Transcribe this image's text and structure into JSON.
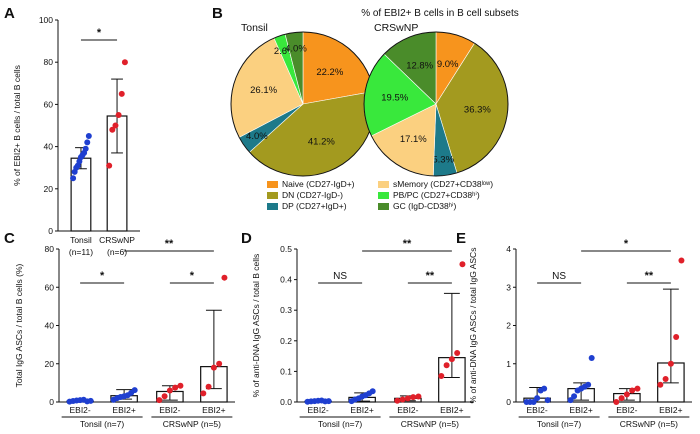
{
  "chart_data": [
    {
      "id": "A",
      "type": "scatter",
      "panel_label": "A",
      "ylabel": "% of EBI2+ B cells / total B cells",
      "ylim": [
        0,
        100
      ],
      "yticks": [
        "0",
        "20",
        "40",
        "60",
        "80",
        "100"
      ],
      "groups": [
        {
          "name": "Tonsil",
          "n": "(n=11)",
          "color": "#1f3fd0",
          "bar": 34.5,
          "err": [
            29.5,
            39.5
          ],
          "points": [
            25,
            28,
            30,
            31,
            33,
            35,
            36,
            37,
            39,
            42,
            45
          ]
        },
        {
          "name": "CRSwNP",
          "n": "(n=6)",
          "color": "#e0202a",
          "bar": 54.5,
          "err": [
            37,
            72
          ],
          "points": [
            31,
            48,
            50,
            55,
            65,
            80
          ]
        }
      ],
      "brackets": [
        {
          "from": 0,
          "to": 1,
          "label": "*"
        }
      ]
    },
    {
      "id": "B",
      "type": "pie",
      "panel_label": "B",
      "title": "% of EBI2+ B cells in B cell subsets",
      "pies": [
        {
          "name": "Tonsil",
          "slices": [
            {
              "label": "22.2%",
              "value": 22.2,
              "color": "#f7941d"
            },
            {
              "label": "41.2%",
              "value": 41.2,
              "color": "#a39a1f"
            },
            {
              "label": "4.0%",
              "value": 4.0,
              "color": "#1d7a8a"
            },
            {
              "label": "26.1%",
              "value": 26.1,
              "color": "#fbd080"
            },
            {
              "label": "2.6%",
              "value": 2.6,
              "color": "#39e83c"
            },
            {
              "label": "4.0%",
              "value": 4.0,
              "color": "#4a8c2a"
            }
          ]
        },
        {
          "name": "CRSwNP",
          "slices": [
            {
              "label": "9.0%",
              "value": 9.0,
              "color": "#f7941d"
            },
            {
              "label": "36.3%",
              "value": 36.3,
              "color": "#a39a1f"
            },
            {
              "label": "5.3%",
              "value": 5.3,
              "color": "#1d7a8a"
            },
            {
              "label": "17.1%",
              "value": 17.1,
              "color": "#fbd080"
            },
            {
              "label": "19.5%",
              "value": 19.5,
              "color": "#39e83c"
            },
            {
              "label": "12.8%",
              "value": 12.8,
              "color": "#4a8c2a"
            }
          ]
        }
      ],
      "legend": [
        {
          "label": "Naive (CD27-IgD+)",
          "color": "#f7941d"
        },
        {
          "label": "sMemory (CD27+CD38ˡᵒʷ)",
          "color": "#fbd080"
        },
        {
          "label": "DN (CD27-IgD-)",
          "color": "#a39a1f"
        },
        {
          "label": "PB/PC (CD27+CD38ʰⁱ)",
          "color": "#39e83c"
        },
        {
          "label": "DP (CD27+IgD+)",
          "color": "#1d7a8a"
        },
        {
          "label": "GC (IgD-CD38ʰⁱ)",
          "color": "#4a8c2a"
        }
      ]
    },
    {
      "id": "C",
      "type": "scatter",
      "panel_label": "C",
      "ylabel": "Total IgG ASCs / total B cells (%)",
      "ylim": [
        0,
        80
      ],
      "yticks": [
        "0",
        "20",
        "40",
        "60",
        "80"
      ],
      "groups": [
        {
          "name": "EBI2-",
          "color": "#1f3fd0",
          "bar": 0.4,
          "err": [
            0,
            1.5
          ],
          "points": [
            0.2,
            0.5,
            0.8,
            1.0,
            1.2,
            0.3,
            0.6
          ]
        },
        {
          "name": "EBI2+",
          "color": "#1f3fd0",
          "bar": 3.3,
          "err": [
            1.5,
            6.5
          ],
          "points": [
            1.2,
            2.0,
            2.6,
            3.0,
            3.5,
            4.8,
            6.2
          ]
        },
        {
          "name": "EBI2-",
          "color": "#e0202a",
          "bar": 5.5,
          "err": [
            1.0,
            8.5
          ],
          "points": [
            1.0,
            3.0,
            6.0,
            7.5,
            8.5
          ]
        },
        {
          "name": "EBI2+",
          "color": "#e0202a",
          "bar": 18.5,
          "err": [
            7,
            48
          ],
          "points": [
            4.5,
            8.0,
            18.0,
            20.0,
            65.0
          ]
        }
      ],
      "group_labels": [
        {
          "label": "Tonsil (n=7)",
          "from": 0,
          "to": 1
        },
        {
          "label": "CRSwNP (n=5)",
          "from": 2,
          "to": 3
        }
      ],
      "brackets": [
        {
          "from": 0,
          "to": 1,
          "label": "*",
          "level": 0
        },
        {
          "from": 2,
          "to": 3,
          "label": "*",
          "level": 0
        },
        {
          "from": 1,
          "to": 3,
          "label": "**",
          "level": 1
        }
      ]
    },
    {
      "id": "D",
      "type": "scatter",
      "panel_label": "D",
      "ylabel": "% of anti-DNA IgG ASCs / total B cells",
      "ylim": [
        0,
        0.5
      ],
      "yticks": [
        "0.0",
        "0.1",
        "0.2",
        "0.3",
        "0.4",
        "0.5"
      ],
      "groups": [
        {
          "name": "EBI2-",
          "color": "#1f3fd0",
          "bar": 0.002,
          "err": [
            0,
            0.006
          ],
          "points": [
            0.001,
            0.002,
            0.003,
            0.004,
            0.005,
            0.002,
            0.003
          ]
        },
        {
          "name": "EBI2+",
          "color": "#1f3fd0",
          "bar": 0.015,
          "err": [
            0.003,
            0.03
          ],
          "points": [
            0.003,
            0.008,
            0.012,
            0.018,
            0.022,
            0.028,
            0.035
          ]
        },
        {
          "name": "EBI2-",
          "color": "#e0202a",
          "bar": 0.012,
          "err": [
            0.004,
            0.02
          ],
          "points": [
            0.004,
            0.008,
            0.012,
            0.016,
            0.018
          ]
        },
        {
          "name": "EBI2+",
          "color": "#e0202a",
          "bar": 0.145,
          "err": [
            0.08,
            0.355
          ],
          "points": [
            0.085,
            0.12,
            0.14,
            0.16,
            0.45
          ]
        }
      ],
      "group_labels": [
        {
          "label": "Tonsil (n=7)",
          "from": 0,
          "to": 1
        },
        {
          "label": "CRSwNP (n=5)",
          "from": 2,
          "to": 3
        }
      ],
      "brackets": [
        {
          "from": 0,
          "to": 1,
          "label": "NS",
          "level": 0
        },
        {
          "from": 2,
          "to": 3,
          "label": "**",
          "level": 0
        },
        {
          "from": 1,
          "to": 3,
          "label": "**",
          "level": 1
        }
      ]
    },
    {
      "id": "E",
      "type": "scatter",
      "panel_label": "E",
      "ylabel": "% of anti-DNA IgG ASCs / total IgG ASCs",
      "ylim": [
        0,
        4
      ],
      "yticks": [
        "0",
        "1",
        "2",
        "3",
        "4"
      ],
      "groups": [
        {
          "name": "EBI2-",
          "color": "#1f3fd0",
          "bar": 0.1,
          "err": [
            0,
            0.38
          ],
          "points": [
            0,
            0,
            0,
            0.1,
            0.3,
            0.35,
            0.05
          ]
        },
        {
          "name": "EBI2+",
          "color": "#1f3fd0",
          "bar": 0.35,
          "err": [
            0.05,
            0.5
          ],
          "points": [
            0.05,
            0.15,
            0.3,
            0.35,
            0.4,
            0.45,
            1.15
          ]
        },
        {
          "name": "EBI2-",
          "color": "#e0202a",
          "bar": 0.22,
          "err": [
            0.05,
            0.35
          ],
          "points": [
            0.0,
            0.1,
            0.2,
            0.3,
            0.35
          ]
        },
        {
          "name": "EBI2+",
          "color": "#e0202a",
          "bar": 1.02,
          "err": [
            0.5,
            2.95
          ],
          "points": [
            0.45,
            0.6,
            1.0,
            1.7,
            3.7
          ]
        }
      ],
      "group_labels": [
        {
          "label": "Tonsil (n=7)",
          "from": 0,
          "to": 1
        },
        {
          "label": "CRSwNP (n=5)",
          "from": 2,
          "to": 3
        }
      ],
      "brackets": [
        {
          "from": 0,
          "to": 1,
          "label": "NS",
          "level": 0
        },
        {
          "from": 2,
          "to": 3,
          "label": "**",
          "level": 0
        },
        {
          "from": 1,
          "to": 3,
          "label": "*",
          "level": 1
        }
      ]
    }
  ]
}
